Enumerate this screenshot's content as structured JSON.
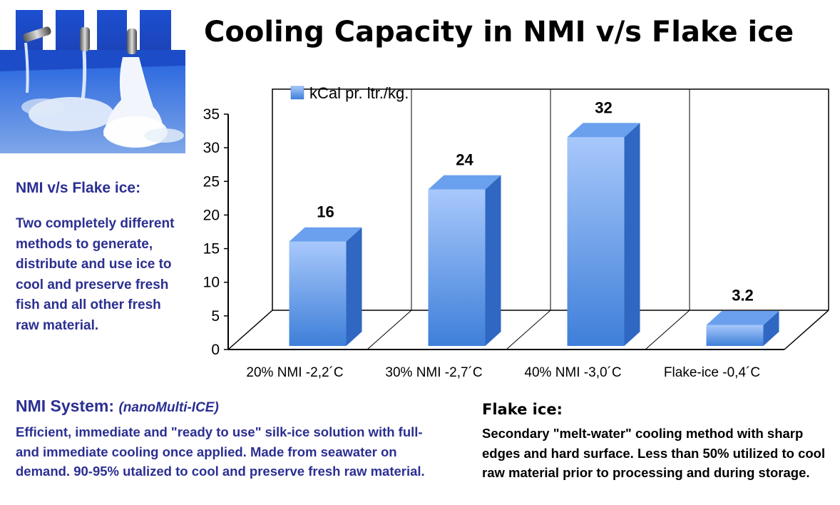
{
  "title": "Cooling Capacity in NMI v/s Flake ice",
  "side_panel": {
    "heading": "NMI v/s Flake ice:",
    "text": "Two completely different methods to generate, distribute and use ice to cool and preserve fresh fish and all other fresh raw material."
  },
  "nmi_section": {
    "heading": "NMI System:",
    "subheading": "(nanoMulti-ICE)",
    "text": "Efficient, immediate and \"ready to use\" silk-ice solution with full- and immediate cooling once applied. Made from seawater on demand. 90-95% utalized to cool and preserve fresh raw material."
  },
  "flake_section": {
    "heading": "Flake ice:",
    "text": "Secondary \"melt-water\" cooling method with sharp edges and hard surface. Less than 50% utilized to cool raw material prior to processing and during storage."
  },
  "chart_data": {
    "type": "bar",
    "title": "Cooling Capacity in NMI v/s Flake ice",
    "categories": [
      "20% NMI -2,2´C",
      "30% NMI -2,7´C",
      "40% NMI -3,0´C",
      "Flake-ice -0,4´C"
    ],
    "series": [
      {
        "name": "kCal pr. ltr./kg.",
        "values": [
          16,
          24,
          32,
          3.2
        ],
        "data_labels": [
          "16",
          "24",
          "32",
          "3.2"
        ]
      }
    ],
    "yticks": [
      0,
      5,
      10,
      15,
      20,
      25,
      30,
      35
    ],
    "ylim": [
      0,
      35
    ],
    "grid": "vertical category lines",
    "legend": "top-left inside plot",
    "style": "3d-bar",
    "colors": {
      "bar_top": "#a8c8fb",
      "bar_bottom": "#3e7fd9",
      "bar_side": "#2f67c2",
      "bar_cap": "#6aa0ee"
    }
  }
}
